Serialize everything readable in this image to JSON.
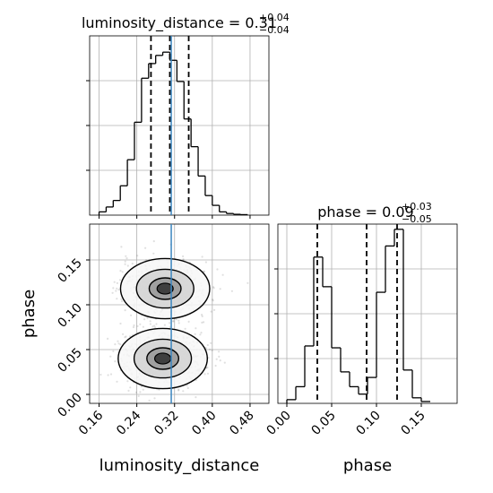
{
  "chart_data": [
    {
      "type": "histogram",
      "panel": "top-left",
      "title": {
        "main": "luminosity_distance = 0.31",
        "plus": "+0.04",
        "minus": "−0.04"
      },
      "x_range": [
        0.14,
        0.52
      ],
      "bin_edges": [
        0.16,
        0.175,
        0.19,
        0.205,
        0.22,
        0.235,
        0.25,
        0.265,
        0.28,
        0.295,
        0.31,
        0.325,
        0.34,
        0.355,
        0.37,
        0.385,
        0.4,
        0.415,
        0.43,
        0.445,
        0.46,
        0.475
      ],
      "counts": [
        0.02,
        0.05,
        0.09,
        0.18,
        0.34,
        0.57,
        0.84,
        0.93,
        0.98,
        1.0,
        0.95,
        0.82,
        0.59,
        0.42,
        0.24,
        0.12,
        0.06,
        0.02,
        0.01,
        0.005,
        0.003
      ],
      "quantiles": [
        0.27,
        0.31,
        0.35
      ],
      "truth": 0.313,
      "grid": true
    },
    {
      "type": "histogram",
      "panel": "bottom-right",
      "title": {
        "main": "phase = 0.09",
        "plus": "+0.03",
        "minus": "−0.05"
      },
      "x_range": [
        -0.01,
        0.19
      ],
      "xticks": [
        0.0,
        0.05,
        0.1,
        0.15
      ],
      "xtick_labels": [
        "0.00",
        "0.05",
        "0.10",
        "0.15"
      ],
      "xlabel": "phase",
      "bin_edges": [
        0.0,
        0.01,
        0.02,
        0.03,
        0.04,
        0.05,
        0.06,
        0.07,
        0.08,
        0.09,
        0.1,
        0.11,
        0.12,
        0.13,
        0.14,
        0.15,
        0.16
      ],
      "counts": [
        0.02,
        0.09,
        0.31,
        0.79,
        0.63,
        0.3,
        0.17,
        0.09,
        0.05,
        0.14,
        0.6,
        0.85,
        0.94,
        0.18,
        0.03,
        0.01
      ],
      "quantiles": [
        0.034,
        0.089,
        0.123
      ],
      "grid": true
    },
    {
      "type": "scatter-contour",
      "panel": "bottom-left",
      "x_range": [
        0.14,
        0.52
      ],
      "y_range": [
        -0.01,
        0.19
      ],
      "xticks": [
        0.16,
        0.24,
        0.32,
        0.4,
        0.48
      ],
      "xtick_labels": [
        "0.16",
        "0.24",
        "0.32",
        "0.40",
        "0.48"
      ],
      "yticks": [
        0.0,
        0.05,
        0.1,
        0.15
      ],
      "ytick_labels": [
        "0.00",
        "0.05",
        "0.10",
        "0.15"
      ],
      "xlabel": "luminosity_distance",
      "ylabel": "phase",
      "truth_x": 0.313,
      "modes": [
        {
          "center": [
            0.3,
            0.118
          ],
          "spread": [
            0.045,
            0.016
          ]
        },
        {
          "center": [
            0.295,
            0.04
          ],
          "spread": [
            0.045,
            0.016
          ]
        }
      ],
      "grid": true
    }
  ],
  "colors": {
    "truth": "#3b86c0",
    "hist": "#000000",
    "grid": "#b0b0b0",
    "points": "#555555"
  }
}
